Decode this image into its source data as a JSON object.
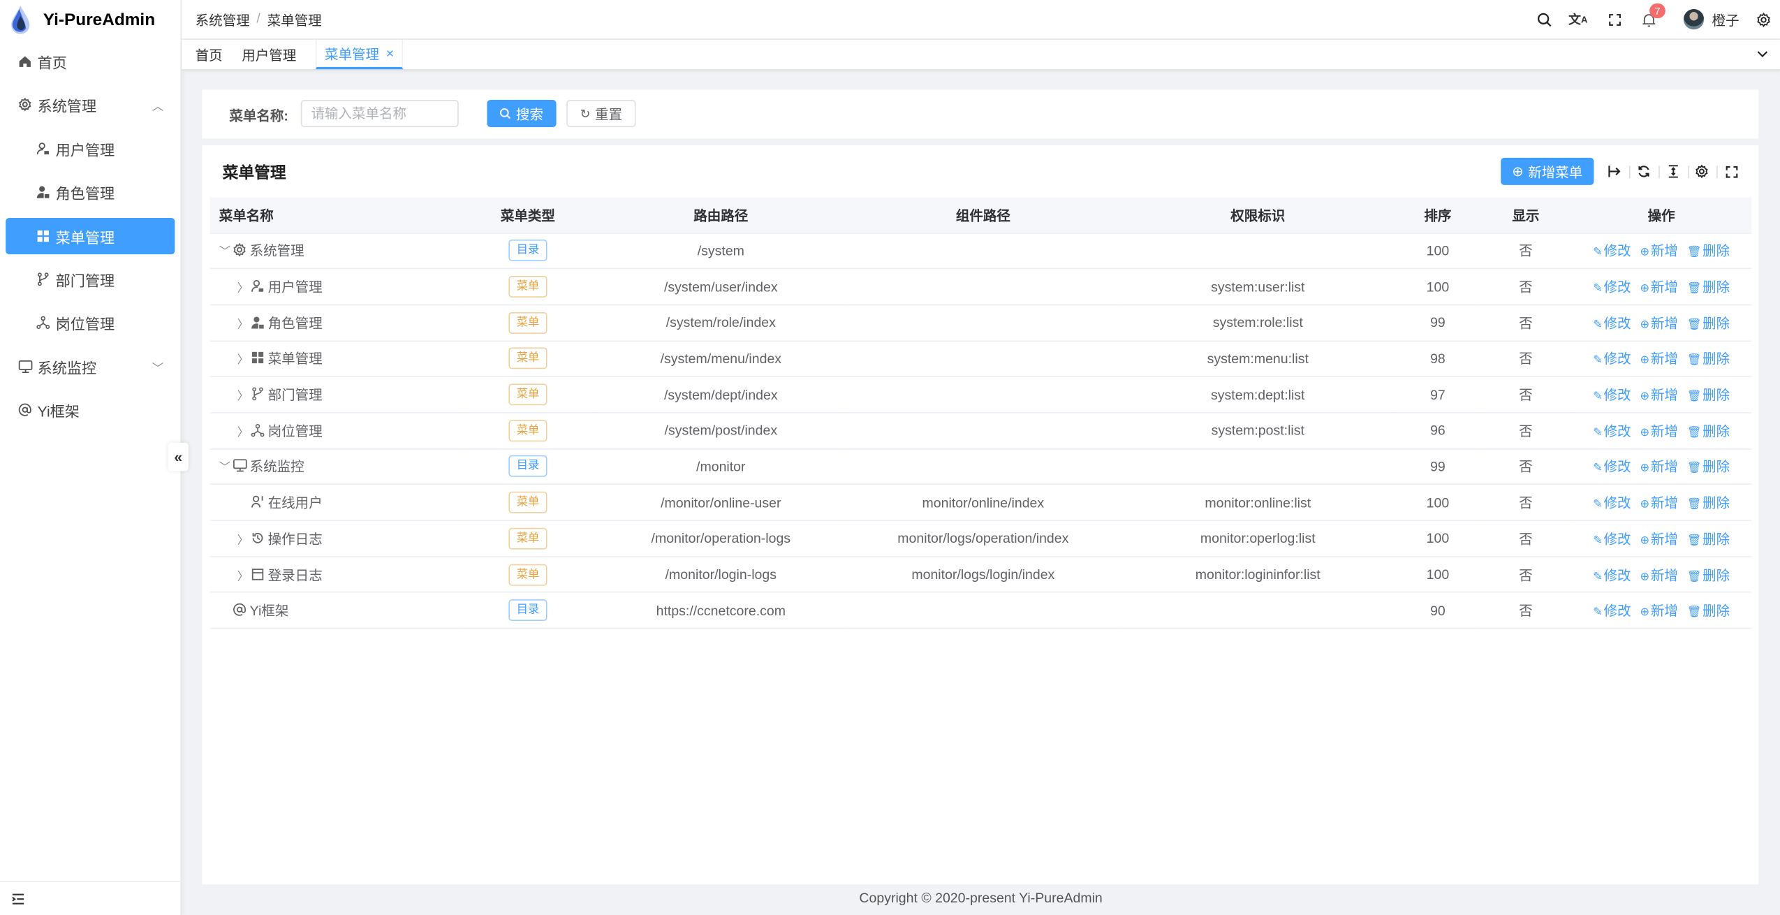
{
  "app": {
    "title": "Yi-PureAdmin"
  },
  "sidebar": {
    "items": [
      {
        "label": "首页",
        "icon": "home-icon",
        "level": 0
      },
      {
        "label": "系统管理",
        "icon": "gear-icon",
        "level": 0,
        "expanded": true
      },
      {
        "label": "用户管理",
        "icon": "user-lock-icon",
        "level": 1
      },
      {
        "label": "角色管理",
        "icon": "role-icon",
        "level": 1
      },
      {
        "label": "菜单管理",
        "icon": "grid-icon",
        "level": 1,
        "active": true
      },
      {
        "label": "部门管理",
        "icon": "branch-icon",
        "level": 1
      },
      {
        "label": "岗位管理",
        "icon": "network-icon",
        "level": 1
      },
      {
        "label": "系统监控",
        "icon": "monitor-icon",
        "level": 0,
        "expanded": false
      },
      {
        "label": "Yi框架",
        "icon": "at-icon",
        "level": 0
      }
    ],
    "collapse_label": "«"
  },
  "header": {
    "breadcrumb": [
      "系统管理",
      "菜单管理"
    ],
    "breadcrumb_sep": "/",
    "notifications": "7",
    "username": "橙子"
  },
  "tabs": [
    {
      "label": "首页"
    },
    {
      "label": "用户管理"
    },
    {
      "label": "菜单管理",
      "active": true,
      "close": "×"
    }
  ],
  "search": {
    "label": "菜单名称:",
    "placeholder": "请输入菜单名称",
    "search_button": "搜索",
    "reset_button": "重置"
  },
  "table": {
    "title": "菜单管理",
    "add_button": "新增菜单",
    "columns": [
      "菜单名称",
      "菜单类型",
      "路由路径",
      "组件路径",
      "权限标识",
      "排序",
      "显示",
      "操作"
    ],
    "actions": [
      "修改",
      "新增",
      "删除"
    ],
    "rows": [
      {
        "name": "系统管理",
        "icon": "gear-icon",
        "level": 0,
        "expand": "down",
        "type": "目录",
        "type_kind": "dir",
        "route": "/system",
        "component": "",
        "perm": "",
        "sort": "100",
        "show": "否"
      },
      {
        "name": "用户管理",
        "icon": "user-lock-icon",
        "level": 1,
        "expand": "right",
        "type": "菜单",
        "type_kind": "menu",
        "route": "/system/user/index",
        "component": "",
        "perm": "system:user:list",
        "sort": "100",
        "show": "否"
      },
      {
        "name": "角色管理",
        "icon": "role-icon",
        "level": 1,
        "expand": "right",
        "type": "菜单",
        "type_kind": "menu",
        "route": "/system/role/index",
        "component": "",
        "perm": "system:role:list",
        "sort": "99",
        "show": "否"
      },
      {
        "name": "菜单管理",
        "icon": "grid-icon",
        "level": 1,
        "expand": "right",
        "type": "菜单",
        "type_kind": "menu",
        "route": "/system/menu/index",
        "component": "",
        "perm": "system:menu:list",
        "sort": "98",
        "show": "否"
      },
      {
        "name": "部门管理",
        "icon": "branch-icon",
        "level": 1,
        "expand": "right",
        "type": "菜单",
        "type_kind": "menu",
        "route": "/system/dept/index",
        "component": "",
        "perm": "system:dept:list",
        "sort": "97",
        "show": "否"
      },
      {
        "name": "岗位管理",
        "icon": "network-icon",
        "level": 1,
        "expand": "right",
        "type": "菜单",
        "type_kind": "menu",
        "route": "/system/post/index",
        "component": "",
        "perm": "system:post:list",
        "sort": "96",
        "show": "否"
      },
      {
        "name": "系统监控",
        "icon": "monitor-icon",
        "level": 0,
        "expand": "down",
        "type": "目录",
        "type_kind": "dir",
        "route": "/monitor",
        "component": "",
        "perm": "",
        "sort": "99",
        "show": "否"
      },
      {
        "name": "在线用户",
        "icon": "online-user-icon",
        "level": 1,
        "expand": "",
        "type": "菜单",
        "type_kind": "menu",
        "route": "/monitor/online-user",
        "component": "monitor/online/index",
        "perm": "monitor:online:list",
        "sort": "100",
        "show": "否"
      },
      {
        "name": "操作日志",
        "icon": "history-icon",
        "level": 1,
        "expand": "right",
        "type": "菜单",
        "type_kind": "menu",
        "route": "/monitor/operation-logs",
        "component": "monitor/logs/operation/index",
        "perm": "monitor:operlog:list",
        "sort": "100",
        "show": "否"
      },
      {
        "name": "登录日志",
        "icon": "window-icon",
        "level": 1,
        "expand": "right",
        "type": "菜单",
        "type_kind": "menu",
        "route": "/monitor/login-logs",
        "component": "monitor/logs/login/index",
        "perm": "monitor:logininfor:list",
        "sort": "100",
        "show": "否"
      },
      {
        "name": "Yi框架",
        "icon": "at-icon",
        "level": 0,
        "expand": "",
        "type": "目录",
        "type_kind": "dir",
        "route": "https://ccnetcore.com",
        "component": "",
        "perm": "",
        "sort": "90",
        "show": "否"
      }
    ]
  },
  "footer": {
    "copyright": "Copyright © 2020-present Yi-PureAdmin"
  },
  "colors": {
    "primary": "#409eff",
    "warning": "#e6a23c",
    "danger": "#f56c6c",
    "background": "#f0f2f5"
  }
}
